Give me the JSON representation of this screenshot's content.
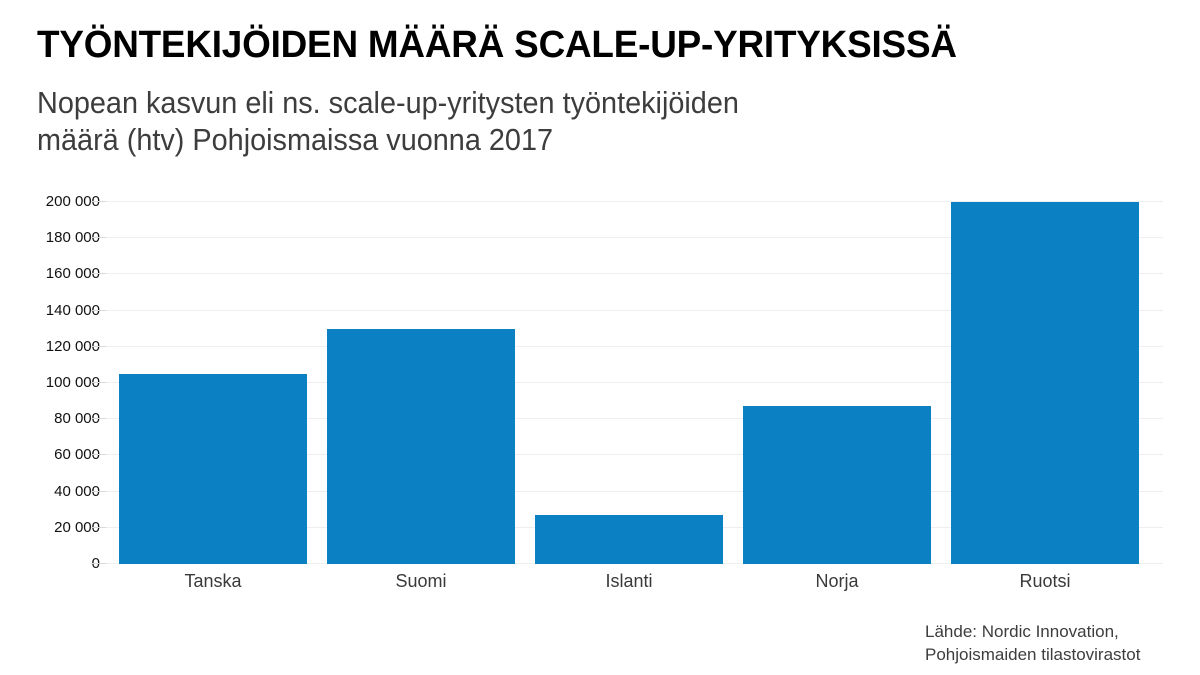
{
  "header": {
    "title": "TYÖNTEKIJÖIDEN MÄÄRÄ SCALE-UP-YRITYKSISSÄ",
    "subtitle_line1": "Nopean kasvun eli ns. scale-up-yritysten työntekijöiden",
    "subtitle_line2": "määrä (htv) Pohjoismaissa vuonna 2017"
  },
  "chart_data": {
    "type": "bar",
    "title": "TYÖNTEKIJÖIDEN MÄÄRÄ SCALE-UP-YRITYKSISSÄ",
    "subtitle": "Nopean kasvun eli ns. scale-up-yritysten työntekijöiden määrä (htv) Pohjoismaissa vuonna 2017",
    "categories": [
      "Tanska",
      "Suomi",
      "Islanti",
      "Norja",
      "Ruotsi"
    ],
    "values": [
      105000,
      130000,
      27000,
      87500,
      200000
    ],
    "xlabel": "",
    "ylabel": "",
    "ylim": [
      0,
      200000
    ],
    "ytick_interval": 20000,
    "ytick_labels": [
      "0",
      "20 000",
      "40 000",
      "60 000",
      "80 000",
      "100 000",
      "120 000",
      "140 000",
      "160 000",
      "180 000",
      "200 000"
    ],
    "grid": "horizontal",
    "legend": "none",
    "bar_color": "#0b80c3",
    "gridline_color": "#efeeef"
  },
  "footer": {
    "source_line1": "Lähde: Nordic Innovation,",
    "source_line2": "Pohjoismaiden tilastovirastot"
  }
}
